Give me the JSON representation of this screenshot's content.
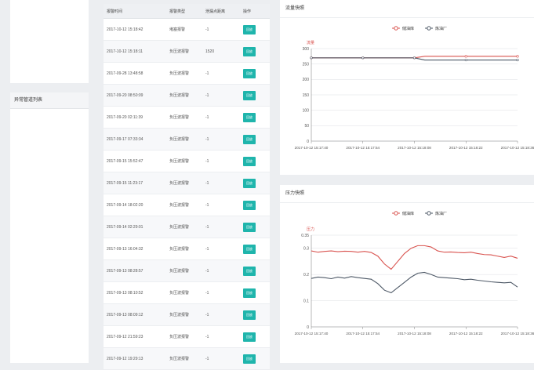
{
  "left": {
    "bottom_title": "异常管道列表"
  },
  "table": {
    "headers": [
      "报警时间",
      "报警类型",
      "泄漏点距离",
      "操作"
    ],
    "button_label": "回放",
    "rows": [
      [
        "2017-10-12 15:18:42",
        "堵塞报警",
        "-1"
      ],
      [
        "2017-10-12 15:18:11",
        "负压波报警",
        "1520"
      ],
      [
        "2017-09-28 13:48:58",
        "负压波报警",
        "-1"
      ],
      [
        "2017-09-20 08:50:09",
        "负压波报警",
        "-1"
      ],
      [
        "2017-09-20 02:11:39",
        "负压波报警",
        "-1"
      ],
      [
        "2017-09-17 07:33:34",
        "负压波报警",
        "-1"
      ],
      [
        "2017-09-15 15:52:47",
        "负压波报警",
        "-1"
      ],
      [
        "2017-09-15 11:23:17",
        "负压波报警",
        "-1"
      ],
      [
        "2017-09-14 18:02:20",
        "负压波报警",
        "-1"
      ],
      [
        "2017-09-14 02:29:01",
        "负压波报警",
        "-1"
      ],
      [
        "2017-09-13 16:04:32",
        "负压波报警",
        "-1"
      ],
      [
        "2017-09-13 08:28:57",
        "负压波报警",
        "-1"
      ],
      [
        "2017-09-13 08:10:52",
        "负压波报警",
        "-1"
      ],
      [
        "2017-09-13 08:09:12",
        "负压波报警",
        "-1"
      ],
      [
        "2017-09-12 21:59:23",
        "负压波报警",
        "-1"
      ],
      [
        "2017-09-12 19:29:13",
        "负压波报警",
        "-1"
      ]
    ]
  },
  "colors": {
    "red": "#d9534f",
    "gray": "#4d5866",
    "accent": "#1fb5ac"
  },
  "chart_data": [
    {
      "type": "line",
      "panel_title": "流量快照",
      "ylabel": "流量",
      "ylim": [
        0,
        300
      ],
      "yticks": [
        "0",
        "50",
        "100",
        "150",
        "200",
        "250",
        "300"
      ],
      "xticks": [
        "2017-10-12 15:17:40",
        "2017-10-12 15:17:54",
        "2017-10-12 15:18:08",
        "2017-10-12 15:18:22",
        "2017-10-12 15:18:36"
      ],
      "series": [
        {
          "name": "储油库",
          "color": "#d9534f",
          "values": [
            270,
            270,
            270,
            270,
            270,
            270,
            270,
            270,
            270,
            270,
            270,
            275,
            275,
            275,
            275,
            275,
            275,
            275,
            275,
            275,
            275
          ]
        },
        {
          "name": "炼油厂",
          "color": "#4d5866",
          "values": [
            270,
            270,
            270,
            270,
            270,
            270,
            270,
            270,
            270,
            270,
            270,
            263,
            263,
            263,
            263,
            263,
            263,
            263,
            263,
            263,
            263
          ]
        }
      ]
    },
    {
      "type": "line",
      "panel_title": "压力快照",
      "ylabel": "压力",
      "ylim": [
        0,
        0.35
      ],
      "yticks": [
        "0",
        "0.1",
        "0.2",
        "0.3",
        "0.35"
      ],
      "xticks": [
        "2017-10-12 15:17:40",
        "2017-10-12 15:17:54",
        "2017-10-12 15:18:08",
        "2017-10-12 15:18:22",
        "2017-10-12 15:18:36"
      ],
      "series": [
        {
          "name": "储油库",
          "color": "#d9534f",
          "values": [
            0.29,
            0.285,
            0.288,
            0.29,
            0.287,
            0.289,
            0.288,
            0.285,
            0.288,
            0.284,
            0.27,
            0.24,
            0.22,
            0.25,
            0.28,
            0.3,
            0.31,
            0.31,
            0.305,
            0.29,
            0.285,
            0.286,
            0.284,
            0.283,
            0.285,
            0.28,
            0.276,
            0.275,
            0.27,
            0.265,
            0.27,
            0.262
          ]
        },
        {
          "name": "炼油厂",
          "color": "#4d5866",
          "values": [
            0.185,
            0.19,
            0.188,
            0.184,
            0.19,
            0.186,
            0.192,
            0.188,
            0.185,
            0.182,
            0.165,
            0.14,
            0.13,
            0.15,
            0.17,
            0.19,
            0.205,
            0.208,
            0.2,
            0.19,
            0.188,
            0.186,
            0.184,
            0.18,
            0.182,
            0.178,
            0.175,
            0.172,
            0.17,
            0.168,
            0.17,
            0.152
          ]
        }
      ]
    }
  ]
}
